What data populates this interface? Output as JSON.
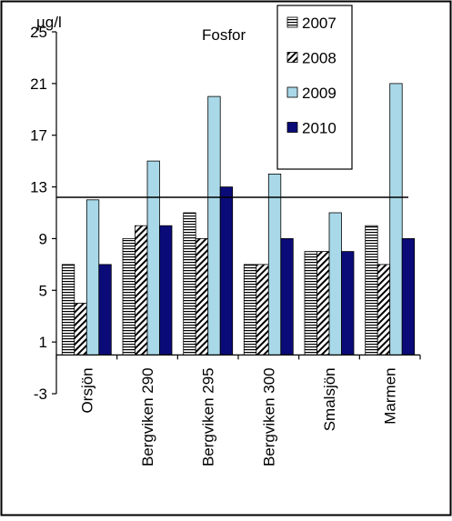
{
  "chart_data": {
    "type": "bar",
    "title": "Fosfor",
    "ylabel": "µg/l",
    "xlabel": "",
    "ylim": [
      -3,
      25
    ],
    "yticks": [
      -3,
      1,
      5,
      9,
      13,
      17,
      21,
      25
    ],
    "categories": [
      "Orsjön",
      "Bergviken 290",
      "Bergviken 295",
      "Bergviken 300",
      "Smalsjön",
      "Marmen"
    ],
    "series": [
      {
        "name": "2007",
        "values": [
          7,
          9,
          11,
          7,
          8,
          10
        ],
        "pattern": "horizontal-stripes",
        "color": "#000000"
      },
      {
        "name": "2008",
        "values": [
          4,
          10,
          9,
          7,
          8,
          7
        ],
        "pattern": "diagonal-stripes",
        "color": "#000000"
      },
      {
        "name": "2009",
        "values": [
          12,
          15,
          20,
          14,
          11,
          21
        ],
        "pattern": "solid",
        "color": "#a9d9e8"
      },
      {
        "name": "2010",
        "values": [
          7,
          10,
          13,
          9,
          8,
          9
        ],
        "pattern": "solid",
        "color": "#0a0a78"
      }
    ],
    "reference_line": {
      "value": 12.2
    },
    "legend": "top-right",
    "grid": false
  }
}
